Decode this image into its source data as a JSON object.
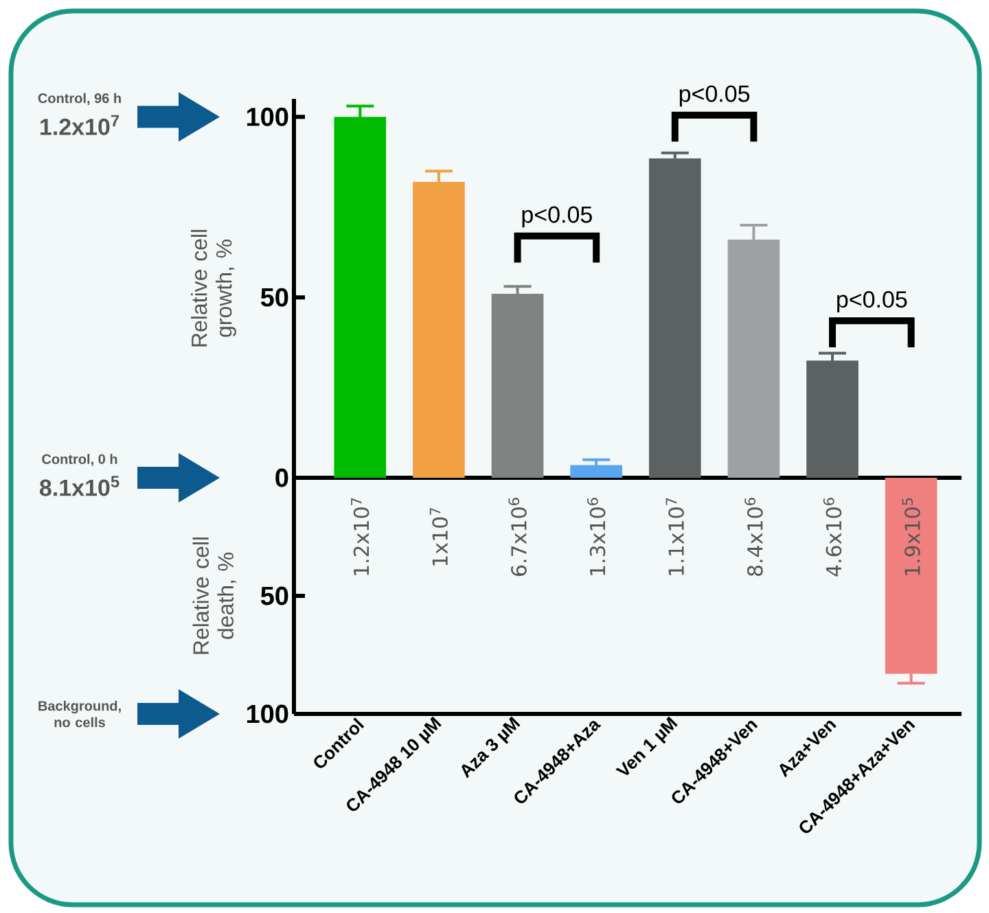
{
  "chart_data": [
    {
      "type": "bar",
      "categories": [
        null,
        null,
        null,
        null,
        null,
        null,
        null,
        null
      ],
      "values": [
        100,
        82,
        51,
        3.5,
        88.5,
        66,
        32.5,
        null
      ],
      "errors": [
        3,
        3,
        2,
        1.5,
        1.5,
        4,
        2,
        null
      ],
      "colors": [
        "#00bb00",
        "#f2a044",
        "#7f8382",
        "#5aa5f0",
        "#5c6161",
        "#9ea1a4",
        "#5c6161",
        null
      ],
      "ylabel": "Relative cell growth, %",
      "ylim": [
        0,
        105
      ],
      "yticks": [
        0,
        50,
        100
      ],
      "tick_labels": "y",
      "annotations": [
        "p<0.05",
        "p<0.05",
        "p<0.05",
        "Control, 96 h",
        "1.2x10$^{7}$",
        "Control, 0 h",
        "8.1x10$^{5}$"
      ]
    },
    {
      "type": "bar",
      "categories": [
        "Control",
        "CA-4948 10 µM",
        "Aza 3 µM",
        "CA-4948+Aza",
        "Ven 1 µM",
        "CA-4948+Ven",
        "Aza+Ven",
        "CA-4948+Aza+Ven"
      ],
      "values": [
        null,
        null,
        null,
        null,
        null,
        null,
        null,
        83
      ],
      "errors": [
        null,
        null,
        null,
        null,
        null,
        null,
        null,
        4
      ],
      "color": "#f08080",
      "ylabel": "Relative cell death, %",
      "ylim": [
        100,
        0
      ],
      "yticks": [
        50,
        100
      ],
      "annotations": [
        "1.2x10$^{7}$",
        "1x10$^{7}$",
        "6.7x10$^{6}$",
        "1.3x10$^{6}$",
        "1.1x10$^{7}$",
        "8.4x10$^{6}$",
        "4.6x10$^{6}$",
        "1.9x10$^{5}$",
        "Background, no cells"
      ]
    }
  ]
}
